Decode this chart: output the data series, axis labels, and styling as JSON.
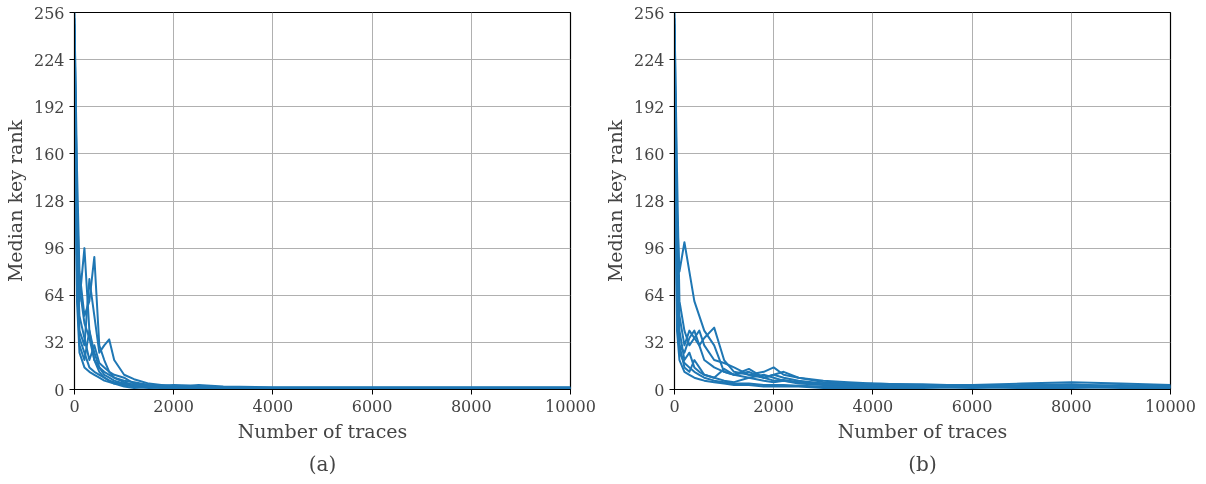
{
  "chart_data": [
    {
      "type": "line",
      "title": "(a)",
      "xlabel": "Number of traces",
      "ylabel": "Median key rank",
      "xlim": [
        0,
        10000
      ],
      "ylim": [
        0,
        256
      ],
      "xticks": [
        0,
        2000,
        4000,
        6000,
        8000,
        10000
      ],
      "yticks": [
        0,
        32,
        64,
        96,
        128,
        160,
        192,
        224,
        256
      ],
      "grid": true,
      "marker": "none",
      "line_style": "solid",
      "x": [
        0,
        50,
        100,
        200,
        300,
        400,
        500,
        600,
        700,
        800,
        1000,
        1200,
        1500,
        2000,
        2500,
        3000,
        4000,
        6000,
        8000,
        10000
      ],
      "series": [
        {
          "color": "#1f77b4",
          "values": [
            256,
            120,
            60,
            96,
            40,
            20,
            15,
            10,
            8,
            6,
            4,
            3,
            2,
            1,
            1,
            0,
            0,
            0,
            0,
            0
          ]
        },
        {
          "color": "#1f77b4",
          "values": [
            252,
            150,
            80,
            50,
            60,
            90,
            30,
            20,
            12,
            8,
            5,
            3,
            2,
            2,
            1.5,
            1,
            0.5,
            0.5,
            0.5,
            0.5
          ]
        },
        {
          "color": "#1f77b4",
          "values": [
            240,
            100,
            40,
            30,
            75,
            50,
            25,
            30,
            34,
            20,
            10,
            7,
            4,
            2,
            2,
            1.5,
            1,
            1,
            1,
            1
          ]
        },
        {
          "color": "#1f77b4",
          "values": [
            200,
            80,
            30,
            20,
            40,
            25,
            15,
            12,
            10,
            8,
            6,
            5,
            3,
            1,
            3,
            2,
            1.5,
            1.5,
            1.5,
            1.5
          ]
        },
        {
          "color": "#1f77b4",
          "values": [
            248,
            60,
            25,
            15,
            12,
            10,
            8,
            6,
            5,
            4,
            3,
            2,
            1,
            1.5,
            0.5,
            0.5,
            0.2,
            0.2,
            0.2,
            0.2
          ]
        },
        {
          "color": "#1f77b4",
          "values": [
            230,
            90,
            50,
            35,
            20,
            30,
            18,
            15,
            12,
            10,
            8,
            4,
            3,
            2.5,
            1.2,
            0.8,
            0.8,
            0.8,
            0.8,
            0.8
          ]
        },
        {
          "color": "#1f77b4",
          "values": [
            244,
            130,
            70,
            45,
            35,
            20,
            12,
            8,
            6,
            4,
            2,
            1,
            1.5,
            0.5,
            0.3,
            0.3,
            0.3,
            0.3,
            0.3,
            0.3
          ]
        },
        {
          "color": "#1f77b4",
          "values": [
            220,
            70,
            35,
            25,
            15,
            12,
            10,
            8,
            6,
            5,
            4,
            3,
            2,
            3,
            2.5,
            1.2,
            1.2,
            1.2,
            1.2,
            1.2
          ]
        }
      ]
    },
    {
      "type": "line",
      "title": "(b)",
      "xlabel": "Number of traces",
      "ylabel": "Median key rank",
      "xlim": [
        0,
        10000
      ],
      "ylim": [
        0,
        256
      ],
      "xticks": [
        0,
        2000,
        4000,
        6000,
        8000,
        10000
      ],
      "yticks": [
        0,
        32,
        64,
        96,
        128,
        160,
        192,
        224,
        256
      ],
      "grid": true,
      "marker": "none",
      "line_style": "solid",
      "x": [
        0,
        50,
        100,
        200,
        300,
        400,
        500,
        600,
        800,
        1000,
        1200,
        1500,
        1800,
        2000,
        2200,
        2500,
        3000,
        3500,
        4000,
        5000,
        6000,
        7000,
        8000,
        9000,
        10000
      ],
      "series": [
        {
          "color": "#1f77b4",
          "values": [
            256,
            120,
            80,
            100,
            80,
            60,
            50,
            40,
            30,
            12,
            10,
            8,
            6,
            5,
            6,
            4,
            3,
            2,
            2,
            2,
            1,
            2,
            2,
            1,
            1
          ]
        },
        {
          "color": "#1f77b4",
          "values": [
            252,
            150,
            60,
            40,
            30,
            35,
            40,
            30,
            20,
            18,
            15,
            10,
            12,
            15,
            10,
            8,
            6,
            5,
            4,
            3,
            3,
            4,
            5,
            4,
            3
          ]
        },
        {
          "color": "#1f77b4",
          "values": [
            240,
            90,
            50,
            30,
            40,
            35,
            30,
            20,
            15,
            12,
            10,
            14,
            8,
            10,
            12,
            8,
            5,
            4,
            3,
            3.5,
            2.5,
            2.5,
            3,
            2.5,
            2.5
          ]
        },
        {
          "color": "#1f77b4",
          "values": [
            200,
            60,
            30,
            25,
            35,
            40,
            30,
            35,
            42,
            20,
            12,
            10,
            8,
            6,
            6.5,
            5,
            4,
            3,
            3.5,
            3,
            2,
            3,
            3.5,
            2,
            2
          ]
        },
        {
          "color": "#1f77b4",
          "values": [
            248,
            40,
            20,
            12,
            10,
            8,
            7,
            6,
            5,
            4,
            3,
            3,
            2,
            2,
            2,
            2,
            1,
            1,
            1,
            1,
            1.5,
            1,
            1,
            1.5,
            1.5
          ]
        },
        {
          "color": "#1f77b4",
          "values": [
            230,
            100,
            40,
            20,
            25,
            15,
            12,
            10,
            8,
            14,
            10,
            12,
            8,
            10,
            8,
            6,
            4,
            3,
            4,
            3,
            3,
            2,
            2,
            3,
            2
          ]
        },
        {
          "color": "#1f77b4",
          "values": [
            244,
            70,
            30,
            15,
            12,
            20,
            15,
            10,
            8,
            6,
            5,
            8,
            10,
            8,
            6,
            5,
            3.5,
            3.5,
            2.5,
            2.5,
            2,
            1.5,
            2.5,
            2,
            1
          ]
        },
        {
          "color": "#1f77b4",
          "values": [
            220,
            50,
            25,
            18,
            15,
            12,
            10,
            8,
            6,
            5,
            4,
            4,
            3,
            3,
            3,
            2.5,
            2,
            2,
            1.5,
            2,
            1.8,
            1.8,
            1.8,
            1.8,
            1.8
          ]
        }
      ]
    }
  ]
}
